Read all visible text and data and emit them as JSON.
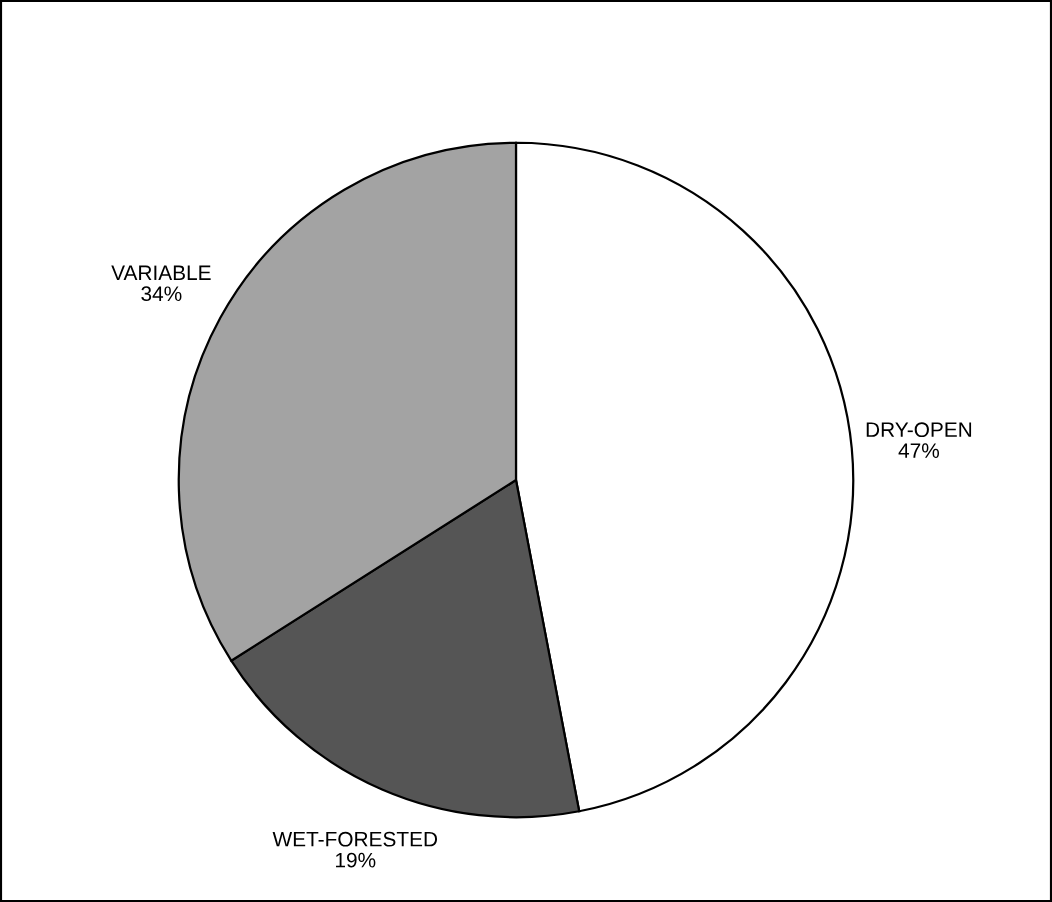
{
  "chart_data": {
    "type": "pie",
    "categories": [
      "DRY-OPEN",
      "WET-FORESTED",
      "VARIABLE"
    ],
    "values": [
      47,
      19,
      34
    ],
    "value_labels": [
      "47%",
      "19%",
      "34%"
    ],
    "colors": [
      "#ffffff",
      "#555555",
      "#a3a3a3"
    ]
  }
}
